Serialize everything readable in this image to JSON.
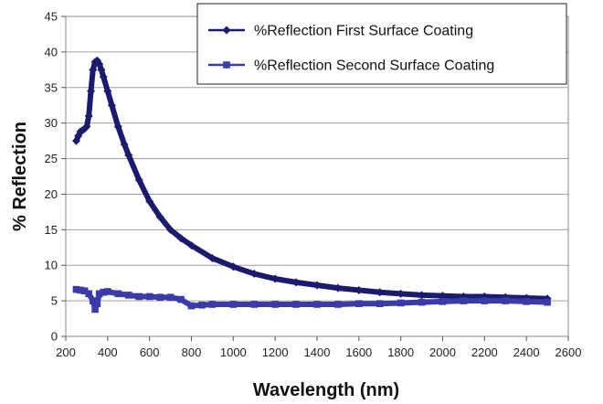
{
  "chart_data": {
    "type": "line",
    "title": "",
    "xlabel": "Wavelength (nm)",
    "ylabel": "% Reflection",
    "xlim": [
      200,
      2600
    ],
    "ylim": [
      0,
      45
    ],
    "x_ticks": [
      200,
      400,
      600,
      800,
      1000,
      1200,
      1400,
      1600,
      1800,
      2000,
      2200,
      2400,
      2600
    ],
    "y_ticks": [
      0,
      5,
      10,
      15,
      20,
      25,
      30,
      35,
      40,
      45
    ],
    "grid": "horizontal",
    "legend_position": "top-right",
    "series": [
      {
        "name": "%Reflection First Surface Coating",
        "color": "#1a1a6e",
        "marker": "diamond",
        "x": [
          250,
          260,
          270,
          280,
          290,
          300,
          310,
          320,
          330,
          340,
          350,
          360,
          370,
          380,
          400,
          420,
          450,
          480,
          500,
          550,
          600,
          650,
          700,
          750,
          800,
          900,
          1000,
          1100,
          1200,
          1300,
          1400,
          1500,
          1600,
          1700,
          1800,
          1900,
          2000,
          2100,
          2200,
          2300,
          2400,
          2500
        ],
        "y": [
          27.5,
          28.2,
          28.8,
          29.0,
          29.2,
          29.5,
          31.0,
          34.5,
          37.5,
          38.6,
          38.8,
          38.3,
          37.5,
          36.5,
          34.5,
          32.5,
          29.5,
          27.0,
          25.5,
          22.0,
          19.0,
          16.8,
          15.0,
          13.8,
          12.8,
          11.0,
          9.8,
          8.8,
          8.1,
          7.6,
          7.2,
          6.8,
          6.5,
          6.2,
          6.0,
          5.8,
          5.7,
          5.6,
          5.6,
          5.5,
          5.4,
          5.3
        ]
      },
      {
        "name": "%Reflection Second Surface Coating",
        "color": "#3a3aa8",
        "marker": "square",
        "x": [
          250,
          270,
          290,
          310,
          330,
          340,
          350,
          360,
          380,
          400,
          450,
          500,
          550,
          600,
          650,
          700,
          750,
          800,
          850,
          900,
          1000,
          1100,
          1200,
          1300,
          1400,
          1500,
          1600,
          1700,
          1800,
          1900,
          2000,
          2100,
          2200,
          2300,
          2400,
          2500
        ],
        "y": [
          6.6,
          6.5,
          6.4,
          6.0,
          5.0,
          3.8,
          4.6,
          6.0,
          6.2,
          6.3,
          6.0,
          5.8,
          5.6,
          5.6,
          5.5,
          5.5,
          5.2,
          4.3,
          4.4,
          4.5,
          4.5,
          4.5,
          4.5,
          4.5,
          4.5,
          4.5,
          4.6,
          4.6,
          4.7,
          4.8,
          4.9,
          5.0,
          5.0,
          5.0,
          4.9,
          4.8
        ]
      }
    ]
  }
}
